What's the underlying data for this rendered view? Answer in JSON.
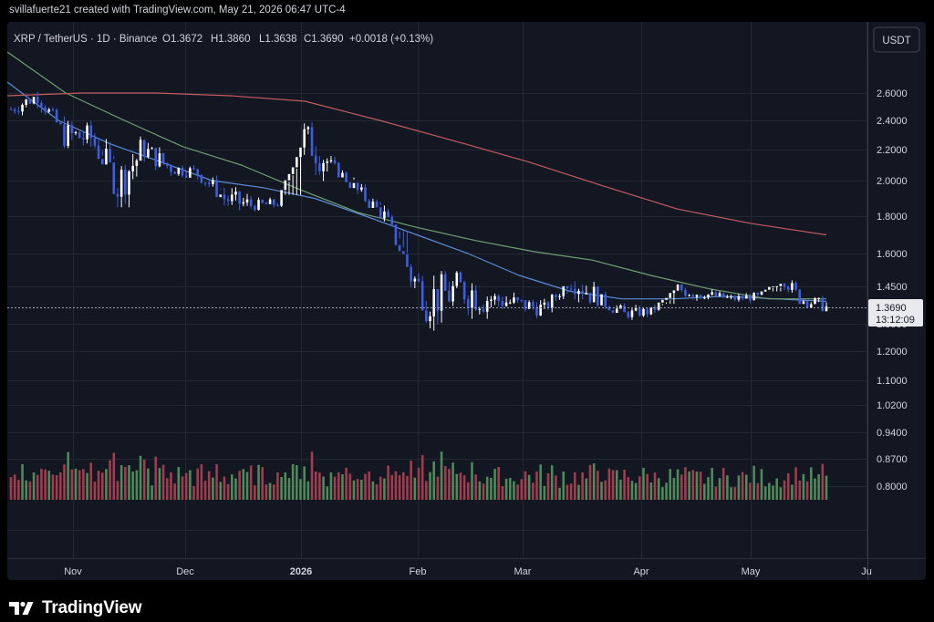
{
  "caption": "svillafuerte21 created with TradingView.com, May 21, 2026 06:47 UTC-4",
  "footer": {
    "brand": "TradingView",
    "logo_icon": "tradingview-logo-icon"
  },
  "chart_data": {
    "type": "candlestick",
    "symbol_info": "XRP / TetherUS · 1D · Binance",
    "ohlc": {
      "open": "O1.3672",
      "high": "H1.3860",
      "low": "L1.3638",
      "close": "C1.3690",
      "change": "+0.0018 (+0.13%)"
    },
    "currency_button": "USDT",
    "price_scale": "log",
    "y_ticks": [
      "2.6000",
      "2.4000",
      "2.2000",
      "2.0000",
      "1.8000",
      "1.6000",
      "1.4500",
      "1.3000",
      "1.2000",
      "1.1000",
      "1.0200",
      "0.9400",
      "0.8700",
      "0.8000"
    ],
    "x_ticks": [
      "Nov",
      "Dec",
      "2026",
      "Feb",
      "Mar",
      "Apr",
      "May",
      "Ju"
    ],
    "last_price": {
      "value": "1.3690",
      "countdown": "13:12:09"
    },
    "candle_series": [
      {
        "date": "2025-10-19",
        "high": 2.56,
        "low": 2.33,
        "close": 2.48
      },
      {
        "date": "2025-10-26",
        "high": 2.66,
        "low": 2.4,
        "close": 2.58
      },
      {
        "date": "2025-11-02",
        "high": 2.58,
        "low": 2.18,
        "close": 2.3
      },
      {
        "date": "2025-11-09",
        "high": 2.62,
        "low": 2.16,
        "close": 2.28
      },
      {
        "date": "2025-11-16",
        "high": 2.4,
        "low": 1.85,
        "close": 1.98
      },
      {
        "date": "2025-11-23",
        "high": 2.25,
        "low": 1.95,
        "close": 2.2
      },
      {
        "date": "2025-11-30",
        "high": 2.22,
        "low": 2.02,
        "close": 2.08
      },
      {
        "date": "2025-12-07",
        "high": 2.16,
        "low": 1.95,
        "close": 2.05
      },
      {
        "date": "2025-12-14",
        "high": 2.05,
        "low": 1.8,
        "close": 1.9
      },
      {
        "date": "2025-12-21",
        "high": 1.95,
        "low": 1.82,
        "close": 1.86
      },
      {
        "date": "2025-12-28",
        "high": 1.92,
        "low": 1.82,
        "close": 1.87
      },
      {
        "date": "2026-01-04",
        "high": 2.4,
        "low": 1.85,
        "close": 2.28
      },
      {
        "date": "2026-01-11",
        "high": 2.2,
        "low": 2.02,
        "close": 2.1
      },
      {
        "date": "2026-01-18",
        "high": 2.08,
        "low": 1.88,
        "close": 1.94
      },
      {
        "date": "2026-01-25",
        "high": 1.95,
        "low": 1.72,
        "close": 1.8
      },
      {
        "date": "2026-02-01",
        "high": 1.72,
        "low": 1.4,
        "close": 1.5
      },
      {
        "date": "2026-02-05",
        "high": 1.52,
        "low": 1.12,
        "close": 1.4
      },
      {
        "date": "2026-02-15",
        "high": 1.68,
        "low": 1.32,
        "close": 1.44
      },
      {
        "date": "2026-02-22",
        "high": 1.5,
        "low": 1.32,
        "close": 1.4
      },
      {
        "date": "2026-03-01",
        "high": 1.45,
        "low": 1.3,
        "close": 1.38
      },
      {
        "date": "2026-03-08",
        "high": 1.42,
        "low": 1.3,
        "close": 1.36
      },
      {
        "date": "2026-03-15",
        "high": 1.6,
        "low": 1.38,
        "close": 1.48
      },
      {
        "date": "2026-03-22",
        "high": 1.48,
        "low": 1.36,
        "close": 1.4
      },
      {
        "date": "2026-03-29",
        "high": 1.4,
        "low": 1.31,
        "close": 1.34
      },
      {
        "date": "2026-04-05",
        "high": 1.38,
        "low": 1.3,
        "close": 1.35
      },
      {
        "date": "2026-04-12",
        "high": 1.46,
        "low": 1.32,
        "close": 1.44
      },
      {
        "date": "2026-04-19",
        "high": 1.46,
        "low": 1.38,
        "close": 1.42
      },
      {
        "date": "2026-04-26",
        "high": 1.44,
        "low": 1.37,
        "close": 1.4
      },
      {
        "date": "2026-05-03",
        "high": 1.43,
        "low": 1.38,
        "close": 1.41
      },
      {
        "date": "2026-05-10",
        "high": 1.54,
        "low": 1.4,
        "close": 1.48
      },
      {
        "date": "2026-05-14",
        "high": 1.5,
        "low": 1.38,
        "close": 1.4
      },
      {
        "date": "2026-05-21",
        "high": 1.386,
        "low": 1.3638,
        "close": 1.369
      }
    ],
    "moving_averages": [
      {
        "color": "#5b8bd6",
        "values": [
          2.68,
          2.4,
          2.24,
          2.12,
          2.0,
          1.96,
          1.9,
          1.8,
          1.7,
          1.6,
          1.5,
          1.43,
          1.4,
          1.4,
          1.41,
          1.4,
          1.39
        ]
      },
      {
        "color": "#6f9e70",
        "values": [
          2.9,
          2.6,
          2.4,
          2.22,
          2.1,
          1.95,
          1.82,
          1.74,
          1.67,
          1.61,
          1.57,
          1.5,
          1.44,
          1.4,
          1.4
        ]
      },
      {
        "color": "#c25b5f",
        "values": [
          2.58,
          2.6,
          2.6,
          2.58,
          2.54,
          2.4,
          2.26,
          2.12,
          1.97,
          1.84,
          1.76,
          1.7
        ]
      }
    ],
    "volume_colors": {
      "up": "#4f8a5a",
      "down": "#a13c4e"
    },
    "candle_colors": {
      "up": "#ffffff",
      "down": "#3d5ee3"
    }
  }
}
